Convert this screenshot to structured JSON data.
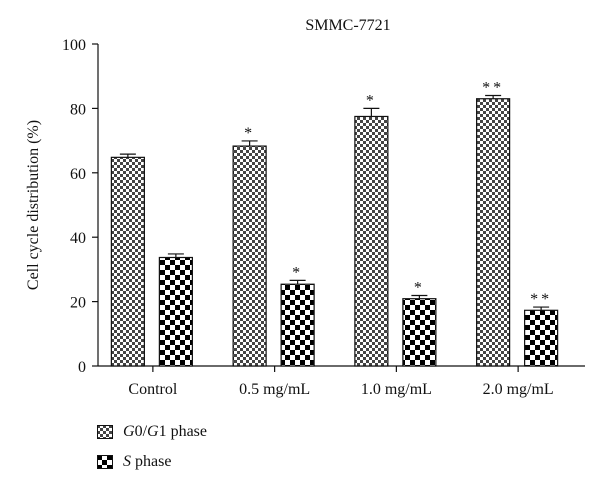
{
  "chart_data": {
    "type": "bar",
    "title": "SMMC-7721",
    "ylabel": "Cell cycle distribution (%)",
    "xlabel": "",
    "ylim": [
      0,
      100
    ],
    "yticks": [
      0,
      20,
      40,
      60,
      80,
      100
    ],
    "categories": [
      "Control",
      "0.5 mg/mL",
      "1.0 mg/mL",
      "2.0 mg/mL"
    ],
    "series": [
      {
        "name": "G0/G1 phase",
        "values": [
          64.8,
          68.3,
          77.5,
          83.0
        ],
        "errors": [
          1.0,
          1.6,
          2.5,
          1.0
        ],
        "significance": [
          "",
          "*",
          "*",
          "**"
        ],
        "color": "#444444",
        "pattern": "fine-check"
      },
      {
        "name": "S phase",
        "values": [
          33.7,
          25.4,
          20.9,
          17.3
        ],
        "errors": [
          1.1,
          1.2,
          1.0,
          1.0
        ],
        "significance": [
          "",
          "*",
          "*",
          "**"
        ],
        "color": "#000000",
        "pattern": "coarse-check"
      }
    ],
    "legend": {
      "placement": "bottom-left",
      "entries": [
        {
          "parts": [
            {
              "text": "G",
              "italic": true
            },
            {
              "text": "0/",
              "italic": false
            },
            {
              "text": "G",
              "italic": true
            },
            {
              "text": "1 phase",
              "italic": false
            }
          ]
        },
        {
          "parts": [
            {
              "text": "S",
              "italic": true
            },
            {
              "text": " phase",
              "italic": false
            }
          ]
        }
      ]
    },
    "grid": false
  }
}
